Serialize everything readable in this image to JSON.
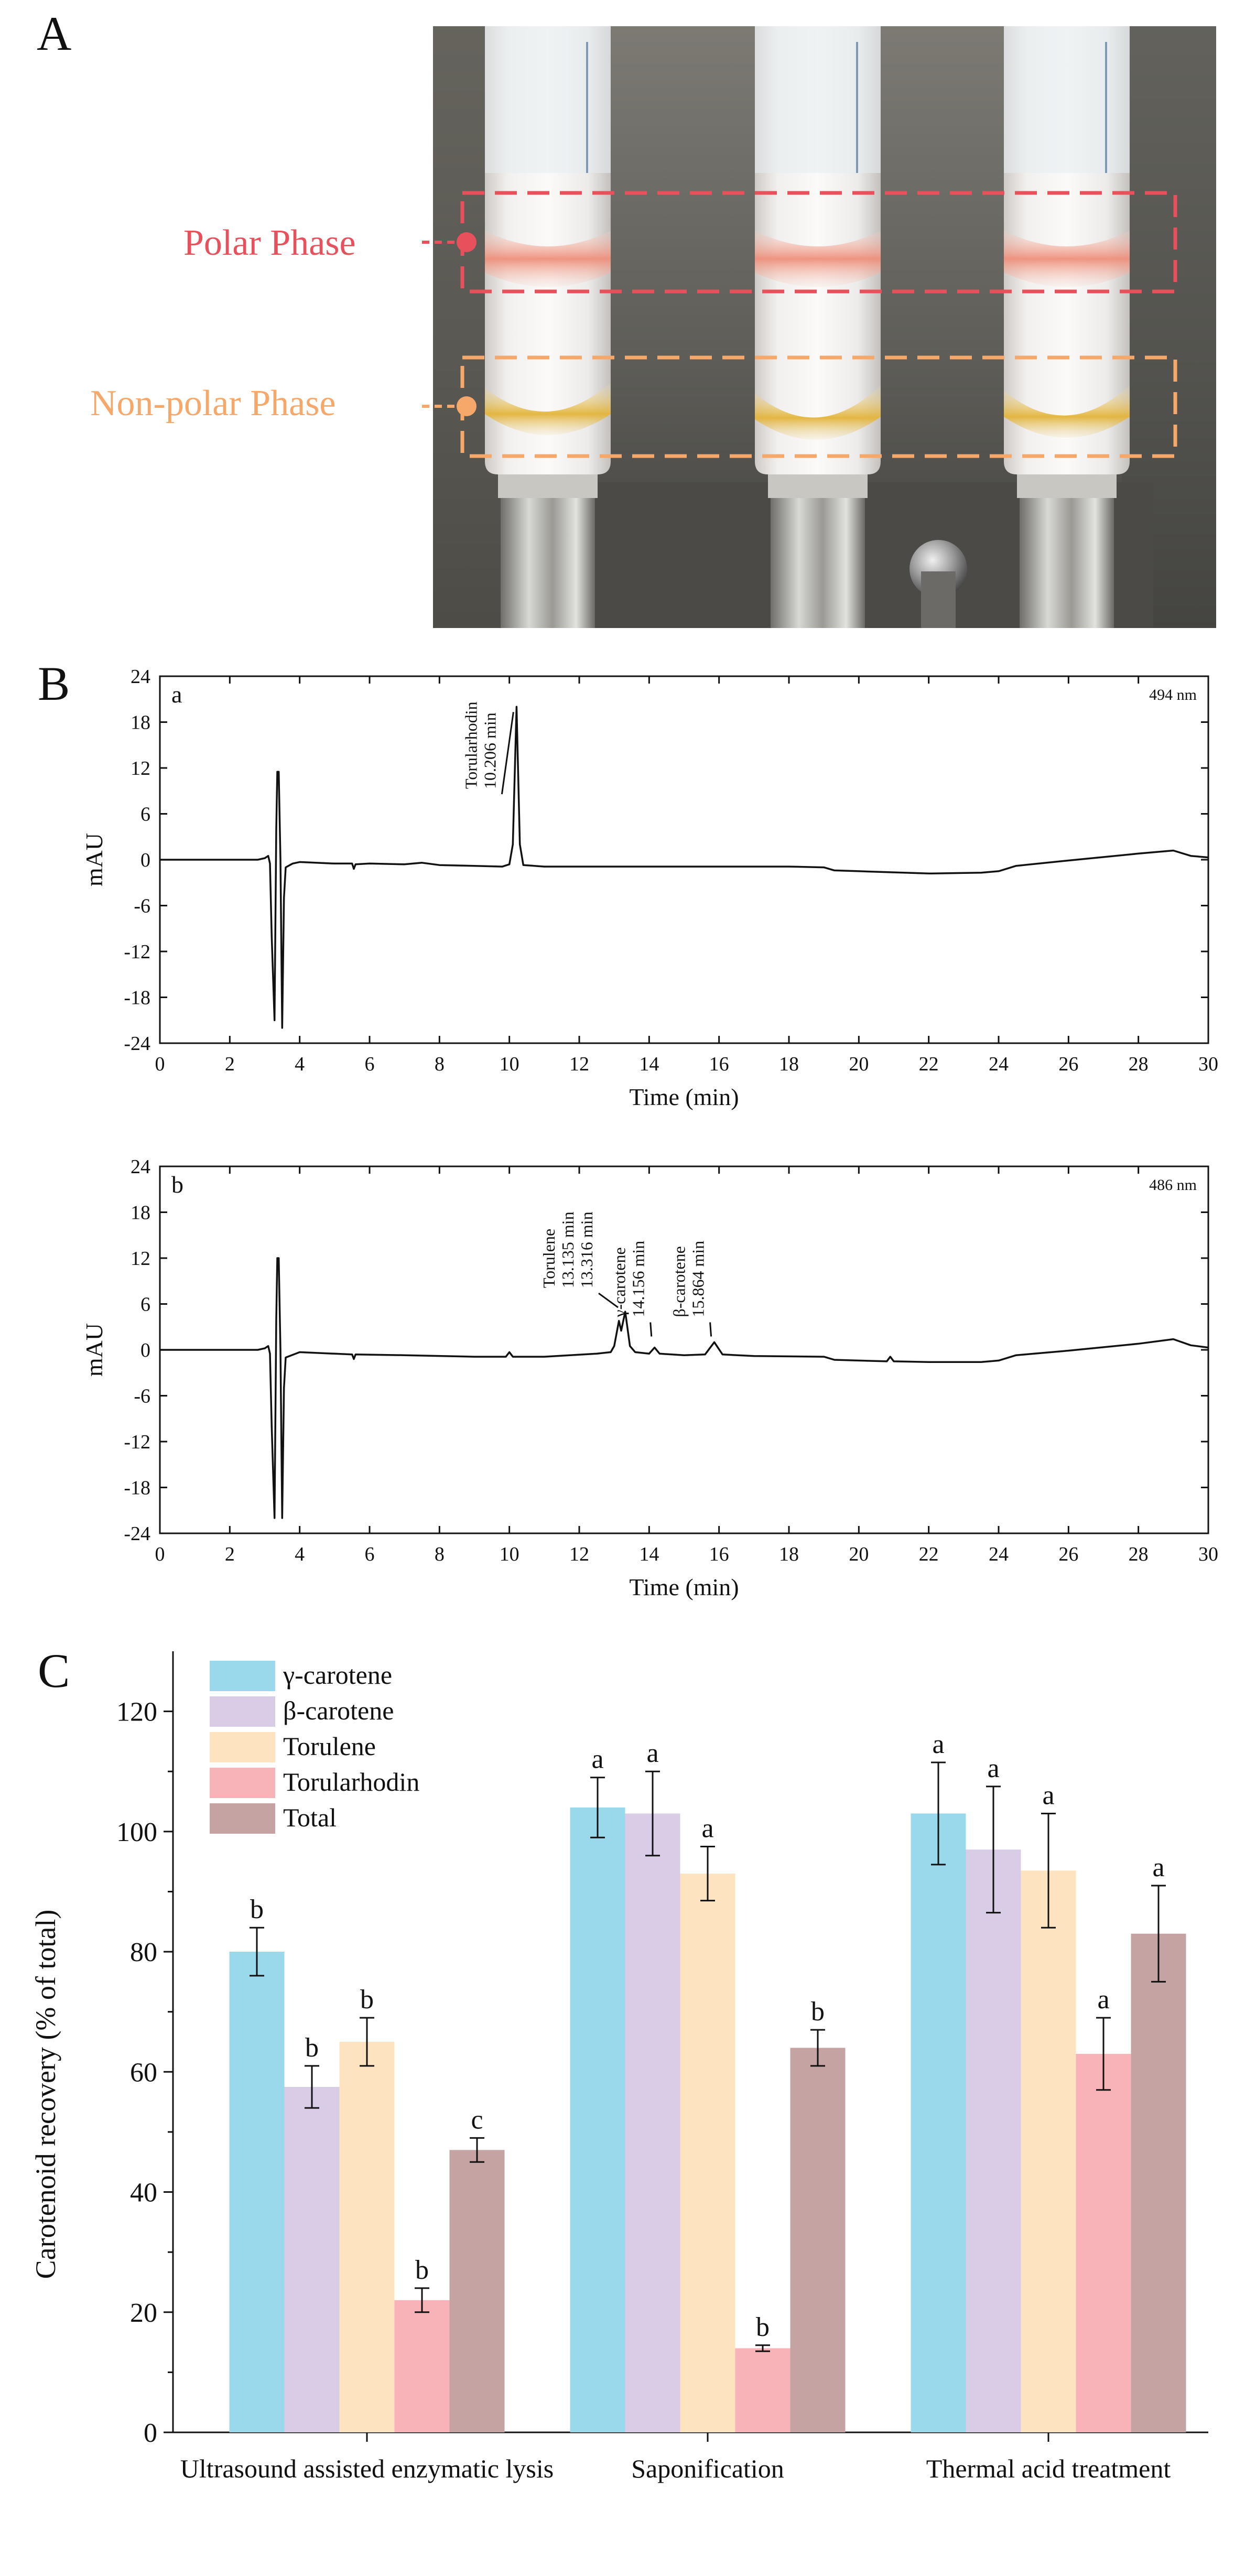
{
  "panels": {
    "A": {
      "letter": "A",
      "labels": {
        "polar": "Polar Phase",
        "nonpolar": "Non-polar Phase"
      },
      "colors": {
        "polar": "#e8505b",
        "nonpolar": "#f5a86a"
      }
    },
    "B": {
      "letter": "B"
    },
    "C": {
      "letter": "C"
    }
  },
  "chart_data": [
    {
      "id": "chromatogram-a",
      "type": "line",
      "panel_label": "a",
      "wavelength": "494 nm",
      "xlabel": "Time (min)",
      "ylabel": "mAU",
      "xlim": [
        0,
        30
      ],
      "ylim": [
        -24,
        24
      ],
      "xticks": [
        0,
        2,
        4,
        6,
        8,
        10,
        12,
        14,
        16,
        18,
        20,
        22,
        24,
        26,
        28,
        30
      ],
      "yticks": [
        24,
        18,
        12,
        6,
        0,
        -6,
        -12,
        -18,
        -24
      ],
      "trace": [
        [
          0,
          0
        ],
        [
          2.8,
          0
        ],
        [
          3.0,
          0.2
        ],
        [
          3.1,
          0.5
        ],
        [
          3.15,
          -0.5
        ],
        [
          3.2,
          -10
        ],
        [
          3.28,
          -21
        ],
        [
          3.33,
          4
        ],
        [
          3.36,
          11.5
        ],
        [
          3.4,
          11.5
        ],
        [
          3.45,
          0
        ],
        [
          3.5,
          -22
        ],
        [
          3.55,
          -5
        ],
        [
          3.6,
          -1
        ],
        [
          3.8,
          -0.5
        ],
        [
          4.0,
          -0.3
        ],
        [
          5.0,
          -0.5
        ],
        [
          5.5,
          -0.5
        ],
        [
          5.55,
          -1.2
        ],
        [
          5.6,
          -0.6
        ],
        [
          6.0,
          -0.5
        ],
        [
          7.0,
          -0.6
        ],
        [
          7.5,
          -0.4
        ],
        [
          8.0,
          -0.7
        ],
        [
          9.0,
          -0.8
        ],
        [
          9.8,
          -0.9
        ],
        [
          10.0,
          -0.6
        ],
        [
          10.1,
          2
        ],
        [
          10.206,
          20
        ],
        [
          10.3,
          2
        ],
        [
          10.4,
          -0.7
        ],
        [
          11.0,
          -0.9
        ],
        [
          14.0,
          -0.9
        ],
        [
          18.0,
          -0.9
        ],
        [
          19.0,
          -1.0
        ],
        [
          19.3,
          -1.4
        ],
        [
          20.0,
          -1.5
        ],
        [
          22.0,
          -1.8
        ],
        [
          23.5,
          -1.7
        ],
        [
          24.0,
          -1.5
        ],
        [
          24.5,
          -0.8
        ],
        [
          26.0,
          -0.1
        ],
        [
          28.0,
          0.8
        ],
        [
          29.0,
          1.2
        ],
        [
          29.5,
          0.5
        ],
        [
          30,
          0.3
        ]
      ],
      "annotations": [
        {
          "name": "Torularhodin",
          "rt": "10.206 min",
          "x": 10.206
        }
      ]
    },
    {
      "id": "chromatogram-b",
      "type": "line",
      "panel_label": "b",
      "wavelength": "486 nm",
      "xlabel": "Time (min)",
      "ylabel": "mAU",
      "xlim": [
        0,
        30
      ],
      "ylim": [
        -24,
        24
      ],
      "xticks": [
        0,
        2,
        4,
        6,
        8,
        10,
        12,
        14,
        16,
        18,
        20,
        22,
        24,
        26,
        28,
        30
      ],
      "yticks": [
        24,
        18,
        12,
        6,
        0,
        -6,
        -12,
        -18,
        -24
      ],
      "trace": [
        [
          0,
          0
        ],
        [
          2.8,
          0
        ],
        [
          3.0,
          0.2
        ],
        [
          3.1,
          0.5
        ],
        [
          3.15,
          -0.5
        ],
        [
          3.2,
          -10
        ],
        [
          3.28,
          -22
        ],
        [
          3.33,
          4
        ],
        [
          3.36,
          12
        ],
        [
          3.4,
          12
        ],
        [
          3.45,
          0
        ],
        [
          3.5,
          -22
        ],
        [
          3.55,
          -5
        ],
        [
          3.6,
          -1
        ],
        [
          4.0,
          -0.3
        ],
        [
          5.5,
          -0.6
        ],
        [
          5.55,
          -1.2
        ],
        [
          5.6,
          -0.6
        ],
        [
          7.0,
          -0.7
        ],
        [
          9.0,
          -0.9
        ],
        [
          9.9,
          -0.9
        ],
        [
          10.0,
          -0.3
        ],
        [
          10.1,
          -0.9
        ],
        [
          11.0,
          -0.9
        ],
        [
          12.5,
          -0.5
        ],
        [
          12.9,
          -0.3
        ],
        [
          13.0,
          0.5
        ],
        [
          13.135,
          3.8
        ],
        [
          13.2,
          2.5
        ],
        [
          13.316,
          5.0
        ],
        [
          13.45,
          0.5
        ],
        [
          13.6,
          -0.3
        ],
        [
          14.0,
          -0.5
        ],
        [
          14.156,
          0.3
        ],
        [
          14.3,
          -0.5
        ],
        [
          15.0,
          -0.7
        ],
        [
          15.6,
          -0.6
        ],
        [
          15.864,
          1.0
        ],
        [
          16.1,
          -0.6
        ],
        [
          17.0,
          -0.8
        ],
        [
          19.0,
          -0.9
        ],
        [
          19.3,
          -1.3
        ],
        [
          20.0,
          -1.4
        ],
        [
          20.8,
          -1.5
        ],
        [
          20.9,
          -0.9
        ],
        [
          21.0,
          -1.5
        ],
        [
          22.0,
          -1.6
        ],
        [
          23.5,
          -1.6
        ],
        [
          24.0,
          -1.4
        ],
        [
          24.5,
          -0.7
        ],
        [
          26.0,
          -0.1
        ],
        [
          28.0,
          0.8
        ],
        [
          29.0,
          1.4
        ],
        [
          29.5,
          0.6
        ],
        [
          30,
          0.3
        ]
      ],
      "annotations": [
        {
          "name": "Torulene",
          "rt": "13.135 min",
          "rt2": "13.316 min",
          "x": 13.2
        },
        {
          "name": "γ-carotene",
          "rt": "14.156 min",
          "x": 14.156
        },
        {
          "name": "β-carotene",
          "rt": "15.864 min",
          "x": 15.864
        }
      ]
    },
    {
      "id": "recovery-bars",
      "type": "bar",
      "ylabel": "Carotenoid recovery (% of total)",
      "ylim": [
        0,
        130
      ],
      "yticks": [
        0,
        20,
        40,
        60,
        80,
        100,
        120
      ],
      "categories": [
        "Ultrasound assisted enzymatic lysis",
        "Saponification",
        "Thermal acid treatment"
      ],
      "series": [
        {
          "name": "γ-carotene",
          "color": "#9ad8ec",
          "values": [
            80,
            104,
            103
          ],
          "errors": [
            4,
            5,
            8.5
          ],
          "letters": [
            "b",
            "a",
            "a"
          ]
        },
        {
          "name": "β-carotene",
          "color": "#d9cce6",
          "values": [
            57.5,
            103,
            97
          ],
          "errors": [
            3.5,
            7,
            10.5
          ],
          "letters": [
            "b",
            "a",
            "a"
          ]
        },
        {
          "name": "Torulene",
          "color": "#fde3bf",
          "values": [
            65,
            93,
            93.5
          ],
          "errors": [
            4,
            4.5,
            9.5
          ],
          "letters": [
            "b",
            "a",
            "a"
          ]
        },
        {
          "name": "Torularhodin",
          "color": "#f8b3b8",
          "values": [
            22,
            14,
            63
          ],
          "errors": [
            2,
            0.5,
            6
          ],
          "letters": [
            "b",
            "b",
            "a"
          ]
        },
        {
          "name": "Total",
          "color": "#c6a3a3",
          "values": [
            47,
            64,
            83
          ],
          "errors": [
            2,
            3,
            8
          ],
          "letters": [
            "c",
            "b",
            "a"
          ]
        }
      ],
      "legend_position": "top-left"
    }
  ]
}
